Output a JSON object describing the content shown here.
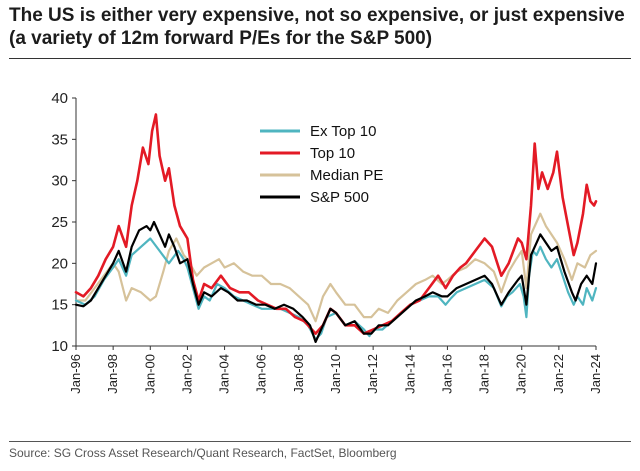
{
  "header": {
    "title": "The US is either very expensive, not so expensive, or just expensive (a variety of 12m forward P/Es for the S&P 500)"
  },
  "footer": {
    "source": "Source: SG Cross Asset Research/Quant Research, FactSet, Bloomberg"
  },
  "chart_data": {
    "type": "line",
    "title": "The US is either very expensive, not so expensive, or just expensive (a variety of 12m forward P/Es for the S&P 500)",
    "xlabel": "",
    "ylabel": "",
    "x_range": [
      1996,
      2024
    ],
    "ylim": [
      10,
      40
    ],
    "y_ticks": [
      "10",
      "15",
      "20",
      "25",
      "30",
      "35",
      "40"
    ],
    "x_ticks": [
      "Jan-96",
      "Jan-98",
      "Jan-00",
      "Jan-02",
      "Jan-04",
      "Jan-06",
      "Jan-08",
      "Jan-10",
      "Jan-12",
      "Jan-14",
      "Jan-16",
      "Jan-18",
      "Jan-20",
      "Jan-22",
      "Jan-24"
    ],
    "legend_position": "top-center",
    "series": [
      {
        "name": "Ex Top 10",
        "color": "#4fb5c0",
        "points": [
          [
            1996.0,
            15.5
          ],
          [
            1996.5,
            15.0
          ],
          [
            1997.0,
            16.0
          ],
          [
            1997.5,
            18.0
          ],
          [
            1998.0,
            19.5
          ],
          [
            1998.3,
            20.5
          ],
          [
            1998.7,
            18.5
          ],
          [
            1999.0,
            21.0
          ],
          [
            1999.5,
            22.0
          ],
          [
            2000.0,
            23.0
          ],
          [
            2000.5,
            21.5
          ],
          [
            2001.0,
            20.0
          ],
          [
            2001.5,
            21.5
          ],
          [
            2001.8,
            20.5
          ],
          [
            2002.0,
            19.5
          ],
          [
            2002.3,
            17.0
          ],
          [
            2002.6,
            14.5
          ],
          [
            2002.9,
            16.0
          ],
          [
            2003.2,
            15.5
          ],
          [
            2003.6,
            17.5
          ],
          [
            2004.0,
            17.0
          ],
          [
            2004.5,
            16.0
          ],
          [
            2005.0,
            15.5
          ],
          [
            2005.5,
            15.0
          ],
          [
            2006.0,
            14.5
          ],
          [
            2006.5,
            14.5
          ],
          [
            2007.0,
            14.5
          ],
          [
            2007.5,
            14.0
          ],
          [
            2008.0,
            13.5
          ],
          [
            2008.5,
            12.5
          ],
          [
            2008.9,
            10.8
          ],
          [
            2009.2,
            11.5
          ],
          [
            2009.5,
            13.5
          ],
          [
            2010.0,
            14.0
          ],
          [
            2010.5,
            12.5
          ],
          [
            2011.0,
            13.0
          ],
          [
            2011.5,
            12.0
          ],
          [
            2011.8,
            11.2
          ],
          [
            2012.0,
            12.0
          ],
          [
            2012.5,
            12.0
          ],
          [
            2013.0,
            13.0
          ],
          [
            2013.5,
            14.0
          ],
          [
            2014.0,
            15.0
          ],
          [
            2014.5,
            15.5
          ],
          [
            2015.0,
            16.0
          ],
          [
            2015.5,
            16.0
          ],
          [
            2015.9,
            15.0
          ],
          [
            2016.2,
            15.8
          ],
          [
            2016.5,
            16.5
          ],
          [
            2017.0,
            17.0
          ],
          [
            2017.5,
            17.5
          ],
          [
            2018.0,
            18.0
          ],
          [
            2018.5,
            17.0
          ],
          [
            2018.9,
            14.8
          ],
          [
            2019.2,
            16.0
          ],
          [
            2019.5,
            16.5
          ],
          [
            2019.9,
            17.5
          ],
          [
            2020.1,
            16.0
          ],
          [
            2020.25,
            13.5
          ],
          [
            2020.4,
            18.5
          ],
          [
            2020.6,
            21.5
          ],
          [
            2020.8,
            21.0
          ],
          [
            2021.0,
            22.0
          ],
          [
            2021.3,
            20.5
          ],
          [
            2021.6,
            19.5
          ],
          [
            2021.9,
            20.5
          ],
          [
            2022.2,
            18.5
          ],
          [
            2022.5,
            16.5
          ],
          [
            2022.8,
            15.0
          ],
          [
            2023.0,
            16.0
          ],
          [
            2023.3,
            15.0
          ],
          [
            2023.5,
            17.0
          ],
          [
            2023.8,
            15.5
          ],
          [
            2024.0,
            17.0
          ]
        ]
      },
      {
        "name": "Top 10",
        "color": "#e31a25",
        "points": [
          [
            1996.0,
            16.5
          ],
          [
            1996.4,
            16.0
          ],
          [
            1996.8,
            17.0
          ],
          [
            1997.2,
            18.5
          ],
          [
            1997.6,
            20.5
          ],
          [
            1998.0,
            22.0
          ],
          [
            1998.3,
            24.5
          ],
          [
            1998.7,
            22.0
          ],
          [
            1999.0,
            27.0
          ],
          [
            1999.3,
            30.0
          ],
          [
            1999.6,
            34.0
          ],
          [
            1999.9,
            32.0
          ],
          [
            2000.1,
            36.0
          ],
          [
            2000.3,
            38.0
          ],
          [
            2000.5,
            33.0
          ],
          [
            2000.8,
            30.0
          ],
          [
            2001.0,
            31.5
          ],
          [
            2001.3,
            27.0
          ],
          [
            2001.6,
            24.5
          ],
          [
            2002.0,
            23.0
          ],
          [
            2002.3,
            18.0
          ],
          [
            2002.6,
            15.5
          ],
          [
            2002.9,
            17.5
          ],
          [
            2003.3,
            17.0
          ],
          [
            2003.8,
            18.5
          ],
          [
            2004.3,
            17.0
          ],
          [
            2004.8,
            16.5
          ],
          [
            2005.3,
            16.5
          ],
          [
            2005.8,
            15.5
          ],
          [
            2006.3,
            15.0
          ],
          [
            2006.8,
            14.5
          ],
          [
            2007.3,
            14.5
          ],
          [
            2007.8,
            13.5
          ],
          [
            2008.3,
            13.0
          ],
          [
            2008.9,
            11.5
          ],
          [
            2009.3,
            12.5
          ],
          [
            2009.7,
            14.5
          ],
          [
            2010.0,
            14.0
          ],
          [
            2010.5,
            12.5
          ],
          [
            2011.0,
            12.5
          ],
          [
            2011.5,
            11.5
          ],
          [
            2012.0,
            12.0
          ],
          [
            2012.5,
            12.5
          ],
          [
            2013.0,
            13.0
          ],
          [
            2013.5,
            14.0
          ],
          [
            2014.0,
            15.0
          ],
          [
            2014.5,
            15.5
          ],
          [
            2015.0,
            17.0
          ],
          [
            2015.5,
            18.5
          ],
          [
            2015.9,
            17.0
          ],
          [
            2016.3,
            18.5
          ],
          [
            2016.7,
            19.5
          ],
          [
            2017.0,
            20.0
          ],
          [
            2017.5,
            21.5
          ],
          [
            2018.0,
            23.0
          ],
          [
            2018.4,
            22.0
          ],
          [
            2018.9,
            18.5
          ],
          [
            2019.3,
            20.0
          ],
          [
            2019.8,
            23.0
          ],
          [
            2020.0,
            22.5
          ],
          [
            2020.25,
            20.5
          ],
          [
            2020.5,
            27.0
          ],
          [
            2020.7,
            34.5
          ],
          [
            2020.9,
            29.0
          ],
          [
            2021.1,
            31.0
          ],
          [
            2021.4,
            29.0
          ],
          [
            2021.7,
            31.0
          ],
          [
            2021.9,
            33.5
          ],
          [
            2022.2,
            28.0
          ],
          [
            2022.5,
            24.5
          ],
          [
            2022.8,
            21.0
          ],
          [
            2023.0,
            22.5
          ],
          [
            2023.3,
            26.0
          ],
          [
            2023.5,
            29.5
          ],
          [
            2023.7,
            27.5
          ],
          [
            2023.9,
            27.0
          ],
          [
            2024.0,
            27.5
          ]
        ]
      },
      {
        "name": "Median PE",
        "color": "#d6c29a",
        "points": [
          [
            1996.0,
            15.5
          ],
          [
            1996.5,
            15.5
          ],
          [
            1997.0,
            17.0
          ],
          [
            1997.5,
            18.5
          ],
          [
            1998.0,
            20.0
          ],
          [
            1998.3,
            19.0
          ],
          [
            1998.7,
            15.5
          ],
          [
            1999.0,
            17.0
          ],
          [
            1999.5,
            16.5
          ],
          [
            2000.0,
            15.5
          ],
          [
            2000.3,
            16.0
          ],
          [
            2000.7,
            19.0
          ],
          [
            2001.0,
            21.5
          ],
          [
            2001.4,
            23.0
          ],
          [
            2001.8,
            21.0
          ],
          [
            2002.0,
            20.5
          ],
          [
            2002.5,
            18.5
          ],
          [
            2002.9,
            19.5
          ],
          [
            2003.3,
            20.0
          ],
          [
            2003.7,
            20.5
          ],
          [
            2004.0,
            19.5
          ],
          [
            2004.5,
            20.0
          ],
          [
            2005.0,
            19.0
          ],
          [
            2005.5,
            18.5
          ],
          [
            2006.0,
            18.5
          ],
          [
            2006.5,
            17.5
          ],
          [
            2007.0,
            17.5
          ],
          [
            2007.5,
            17.0
          ],
          [
            2008.0,
            16.0
          ],
          [
            2008.5,
            15.0
          ],
          [
            2008.9,
            13.0
          ],
          [
            2009.3,
            16.0
          ],
          [
            2009.7,
            17.5
          ],
          [
            2010.0,
            16.5
          ],
          [
            2010.5,
            15.0
          ],
          [
            2011.0,
            15.0
          ],
          [
            2011.5,
            13.5
          ],
          [
            2011.9,
            13.5
          ],
          [
            2012.3,
            14.5
          ],
          [
            2012.8,
            14.0
          ],
          [
            2013.3,
            15.5
          ],
          [
            2013.8,
            16.5
          ],
          [
            2014.3,
            17.5
          ],
          [
            2014.8,
            18.0
          ],
          [
            2015.2,
            18.5
          ],
          [
            2015.7,
            17.5
          ],
          [
            2016.0,
            18.0
          ],
          [
            2016.5,
            19.0
          ],
          [
            2017.0,
            19.5
          ],
          [
            2017.5,
            20.5
          ],
          [
            2018.0,
            20.0
          ],
          [
            2018.5,
            19.0
          ],
          [
            2018.9,
            16.5
          ],
          [
            2019.3,
            19.0
          ],
          [
            2019.7,
            20.5
          ],
          [
            2020.0,
            21.5
          ],
          [
            2020.25,
            17.0
          ],
          [
            2020.5,
            23.5
          ],
          [
            2020.8,
            25.0
          ],
          [
            2021.0,
            26.0
          ],
          [
            2021.3,
            24.5
          ],
          [
            2021.6,
            23.5
          ],
          [
            2021.9,
            22.5
          ],
          [
            2022.3,
            20.5
          ],
          [
            2022.7,
            18.0
          ],
          [
            2023.0,
            20.0
          ],
          [
            2023.4,
            19.5
          ],
          [
            2023.7,
            21.0
          ],
          [
            2024.0,
            21.5
          ]
        ]
      },
      {
        "name": "S&P 500",
        "color": "#000000",
        "points": [
          [
            1996.0,
            15.0
          ],
          [
            1996.4,
            14.8
          ],
          [
            1996.8,
            15.5
          ],
          [
            1997.2,
            17.0
          ],
          [
            1997.6,
            18.5
          ],
          [
            1998.0,
            20.0
          ],
          [
            1998.3,
            21.5
          ],
          [
            1998.7,
            19.0
          ],
          [
            1999.0,
            22.0
          ],
          [
            1999.4,
            24.0
          ],
          [
            1999.8,
            24.5
          ],
          [
            2000.0,
            24.0
          ],
          [
            2000.2,
            25.0
          ],
          [
            2000.5,
            23.5
          ],
          [
            2000.8,
            22.0
          ],
          [
            2001.0,
            23.5
          ],
          [
            2001.3,
            22.0
          ],
          [
            2001.6,
            20.0
          ],
          [
            2002.0,
            20.5
          ],
          [
            2002.3,
            17.5
          ],
          [
            2002.6,
            15.0
          ],
          [
            2002.9,
            16.5
          ],
          [
            2003.3,
            16.0
          ],
          [
            2003.8,
            17.0
          ],
          [
            2004.2,
            16.5
          ],
          [
            2004.7,
            15.5
          ],
          [
            2005.2,
            15.5
          ],
          [
            2005.7,
            15.0
          ],
          [
            2006.2,
            15.0
          ],
          [
            2006.7,
            14.5
          ],
          [
            2007.2,
            15.0
          ],
          [
            2007.7,
            14.5
          ],
          [
            2008.2,
            13.5
          ],
          [
            2008.6,
            12.5
          ],
          [
            2008.9,
            10.5
          ],
          [
            2009.3,
            12.5
          ],
          [
            2009.7,
            14.5
          ],
          [
            2010.0,
            14.0
          ],
          [
            2010.5,
            12.5
          ],
          [
            2011.0,
            13.0
          ],
          [
            2011.5,
            11.5
          ],
          [
            2011.9,
            11.5
          ],
          [
            2012.3,
            12.5
          ],
          [
            2012.8,
            12.5
          ],
          [
            2013.3,
            13.5
          ],
          [
            2013.8,
            14.5
          ],
          [
            2014.3,
            15.5
          ],
          [
            2014.8,
            16.0
          ],
          [
            2015.2,
            16.5
          ],
          [
            2015.7,
            16.0
          ],
          [
            2016.0,
            16.0
          ],
          [
            2016.5,
            17.0
          ],
          [
            2017.0,
            17.5
          ],
          [
            2017.5,
            18.0
          ],
          [
            2018.0,
            18.5
          ],
          [
            2018.4,
            17.5
          ],
          [
            2018.9,
            15.0
          ],
          [
            2019.3,
            16.5
          ],
          [
            2019.8,
            18.0
          ],
          [
            2020.0,
            18.5
          ],
          [
            2020.25,
            15.0
          ],
          [
            2020.5,
            21.0
          ],
          [
            2020.8,
            22.5
          ],
          [
            2021.0,
            23.5
          ],
          [
            2021.3,
            22.5
          ],
          [
            2021.6,
            21.5
          ],
          [
            2021.9,
            22.0
          ],
          [
            2022.3,
            19.0
          ],
          [
            2022.7,
            16.5
          ],
          [
            2022.9,
            15.5
          ],
          [
            2023.2,
            17.5
          ],
          [
            2023.5,
            18.5
          ],
          [
            2023.8,
            17.5
          ],
          [
            2024.0,
            20.0
          ]
        ]
      }
    ]
  }
}
